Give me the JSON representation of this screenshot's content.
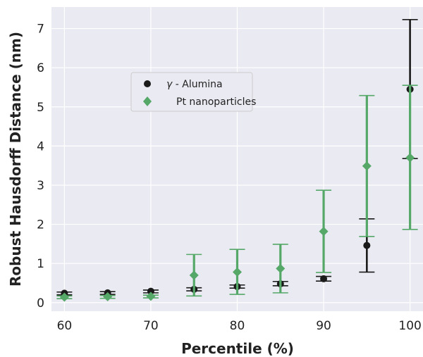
{
  "chart_data": {
    "type": "scatter",
    "xlabel": "Percentile (%)",
    "ylabel": "Robust Hausdorff Distance (nm)",
    "xlim": [
      58.5,
      101.5
    ],
    "ylim": [
      -0.22,
      7.55
    ],
    "xticks": [
      60,
      70,
      80,
      90,
      100
    ],
    "yticks": [
      0,
      1,
      2,
      3,
      4,
      5,
      6,
      7
    ],
    "grid": true,
    "background": "#eaeaf2",
    "legend": {
      "placement": "upper-left"
    },
    "series": [
      {
        "name": "γ - Alumina",
        "name_prefix": "γ",
        "name_suffix": " - Alumina",
        "marker": "circle",
        "color": "#1a1a1a",
        "x": [
          60,
          65,
          70,
          75,
          80,
          85,
          90,
          95,
          100
        ],
        "y": [
          0.24,
          0.25,
          0.29,
          0.34,
          0.41,
          0.48,
          0.61,
          1.46,
          5.45
        ],
        "err_low": [
          0.2,
          0.21,
          0.25,
          0.3,
          0.37,
          0.43,
          0.55,
          0.78,
          3.68
        ],
        "err_high": [
          0.27,
          0.28,
          0.32,
          0.38,
          0.45,
          0.54,
          0.67,
          2.14,
          7.23
        ]
      },
      {
        "name": "Pt nanoparticles",
        "marker": "diamond",
        "color": "#55a868",
        "x": [
          60,
          65,
          70,
          75,
          80,
          85,
          90,
          95,
          100
        ],
        "y": [
          0.14,
          0.15,
          0.16,
          0.7,
          0.78,
          0.87,
          1.82,
          3.49,
          3.7
        ],
        "err_low": [
          0.1,
          0.11,
          0.12,
          0.17,
          0.21,
          0.25,
          0.77,
          1.69,
          1.87
        ],
        "err_high": [
          0.17,
          0.18,
          0.19,
          1.23,
          1.36,
          1.49,
          2.87,
          5.29,
          5.55
        ]
      }
    ]
  }
}
